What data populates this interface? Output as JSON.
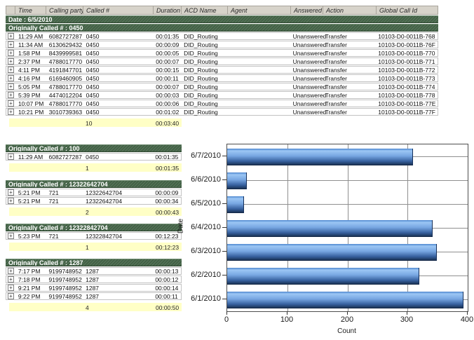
{
  "report": {
    "columns": [
      "Time",
      "Calling party #",
      "Called #",
      "Duration",
      "ACD Name",
      "Agent",
      "Answered",
      "Action",
      "Global Call Id"
    ],
    "date_header": "Date : 6/5/2010",
    "expand_symbol": "+",
    "groups": [
      {
        "title": "Originally Called # : 0450",
        "layout": "full",
        "rows": [
          [
            "11:29 AM",
            "6082727287",
            "0450",
            "00:01:35",
            "DID_Routing",
            "",
            "Unanswered",
            "Transfer",
            "10103-D0-0011B-768"
          ],
          [
            "11:34 AM",
            "6130629432",
            "0450",
            "00:00:09",
            "DID_Routing",
            "",
            "Unanswered",
            "Transfer",
            "10103-D0-0011B-76F"
          ],
          [
            "1:58 PM",
            "8439999581",
            "0450",
            "00:00:05",
            "DID_Routing",
            "",
            "Unanswered",
            "Transfer",
            "10103-D0-0011B-770"
          ],
          [
            "2:37 PM",
            "4788017770",
            "0450",
            "00:00:07",
            "DID_Routing",
            "",
            "Unanswered",
            "Transfer",
            "10103-D0-0011B-771"
          ],
          [
            "4:11 PM",
            "4191847701",
            "0450",
            "00:00:15",
            "DID_Routing",
            "",
            "Unanswered",
            "Transfer",
            "10103-D0-0011B-772"
          ],
          [
            "4:16 PM",
            "6169460905",
            "0450",
            "00:00:11",
            "DID_Routing",
            "",
            "Unanswered",
            "Transfer",
            "10103-D0-0011B-773"
          ],
          [
            "5:05 PM",
            "4788017770",
            "0450",
            "00:00:07",
            "DID_Routing",
            "",
            "Unanswered",
            "Transfer",
            "10103-D0-0011B-774"
          ],
          [
            "5:39 PM",
            "4474012204",
            "0450",
            "00:00:03",
            "DID_Routing",
            "",
            "Unanswered",
            "Transfer",
            "10103-D0-0011B-778"
          ],
          [
            "10:07 PM",
            "4788017770",
            "0450",
            "00:00:06",
            "DID_Routing",
            "",
            "Unanswered",
            "Transfer",
            "10103-D0-0011B-77E"
          ],
          [
            "10:21 PM",
            "3010739363",
            "0450",
            "00:01:02",
            "DID_Routing",
            "",
            "Unanswered",
            "Transfer",
            "10103-D0-0011B-77F"
          ]
        ],
        "summary": {
          "count": "10",
          "total_duration": "00:03:40"
        }
      },
      {
        "title": "Originally Called # : 100",
        "layout": "narrow",
        "rows": [
          [
            "11:29 AM",
            "6082727287",
            "0450",
            "00:01:35"
          ]
        ],
        "summary": {
          "count": "1",
          "total_duration": "00:01:35"
        }
      },
      {
        "title": "Originally Called # : 12322642704",
        "layout": "narrow",
        "rows": [
          [
            "5:21 PM",
            "721",
            "12322642704",
            "00:00:09"
          ],
          [
            "5:21 PM",
            "721",
            "12322642704",
            "00:00:34"
          ]
        ],
        "summary": {
          "count": "2",
          "total_duration": "00:00:43"
        }
      },
      {
        "title": "Originally Called # : 12322842704",
        "layout": "narrow",
        "rows": [
          [
            "5:23 PM",
            "721",
            "12322842704",
            "00:12:23"
          ]
        ],
        "summary": {
          "count": "1",
          "total_duration": "00:12:23"
        }
      },
      {
        "title": "Originally Called # : 1287",
        "layout": "narrow",
        "rows": [
          [
            "7:17 PM",
            "9199748952",
            "1287",
            "00:00:13"
          ],
          [
            "7:18 PM",
            "9199748952",
            "1287",
            "00:00:12"
          ],
          [
            "9:21 PM",
            "9199748952",
            "1287",
            "00:00:14"
          ],
          [
            "9:22 PM",
            "9199748952",
            "1287",
            "00:00:11"
          ]
        ],
        "summary": {
          "count": "4",
          "total_duration": "00:00:50"
        }
      }
    ]
  },
  "chart_data": {
    "type": "bar",
    "orientation": "horizontal",
    "title": "",
    "categories": [
      "6/7/2010",
      "6/6/2010",
      "6/5/2010",
      "6/4/2010",
      "6/3/2010",
      "6/2/2010",
      "6/1/2010"
    ],
    "values": [
      308,
      32,
      27,
      340,
      348,
      318,
      392
    ],
    "xlabel": "Count",
    "ylabel": "Date",
    "xlim": [
      0,
      400
    ],
    "xticks": [
      0,
      100,
      200,
      300,
      400
    ],
    "grid": true,
    "legend": "none"
  },
  "colors": {
    "group_bar_green": "#426245",
    "summary_yellow": "#ffffc6",
    "header_gray": "#d7d3ca",
    "bar_blue_light": "#9cc6f4",
    "bar_blue_dark": "#1b3457",
    "gridline": "#8f8f8f"
  }
}
